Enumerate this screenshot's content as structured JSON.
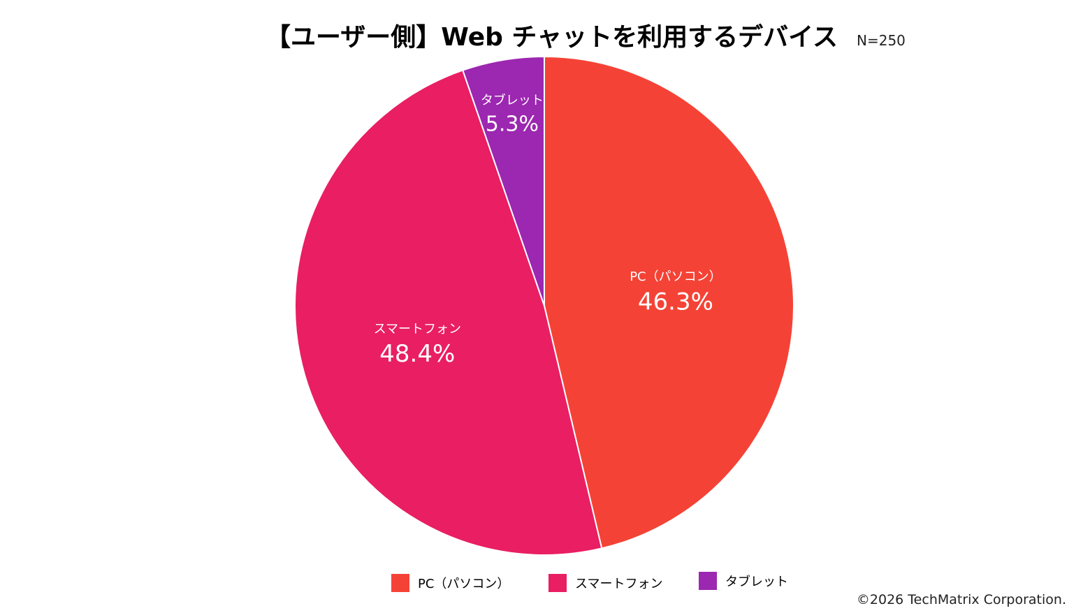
{
  "chart_data": {
    "type": "pie",
    "title": "【ユーザー側】Web チャットを利用するデバイス",
    "sample_size": "N=250",
    "slices": [
      {
        "label": "PC（パソコン）",
        "value": 46.3,
        "value_text": "46.3%",
        "color": "#f44336"
      },
      {
        "label": "スマートフォン",
        "value": 48.4,
        "value_text": "48.4%",
        "color": "#e91e63"
      },
      {
        "label": "タブレット",
        "value": 5.3,
        "value_text": "5.3%",
        "color": "#9c27b0"
      }
    ],
    "start_angle": "12 o'clock",
    "direction": "clockwise",
    "legend_position": "bottom"
  },
  "footer": {
    "copyright": "©2026 TechMatrix Corporation."
  }
}
